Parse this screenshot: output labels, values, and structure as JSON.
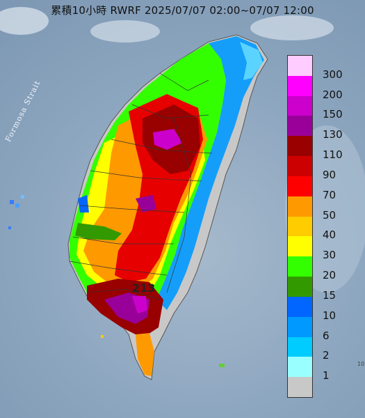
{
  "title": "累積10小時 RWRF 2025/07/07 02:00~07/07 12:00",
  "strait_label": "Formosa Strait",
  "peak_value": "213",
  "legend": {
    "unit_levels": [
      "300",
      "200",
      "150",
      "130",
      "110",
      "90",
      "70",
      "50",
      "40",
      "30",
      "20",
      "15",
      "10",
      "6",
      "2",
      "1"
    ],
    "colors": [
      "#ffccff",
      "#ff00ff",
      "#cc00cc",
      "#990099",
      "#990000",
      "#cc0000",
      "#ff0000",
      "#ff9900",
      "#ffcc00",
      "#ffff00",
      "#33ff00",
      "#339900",
      "#0066ff",
      "#0099ff",
      "#00ccff",
      "#99ffff",
      "#c8c8c8"
    ]
  },
  "edge_text": "10"
}
